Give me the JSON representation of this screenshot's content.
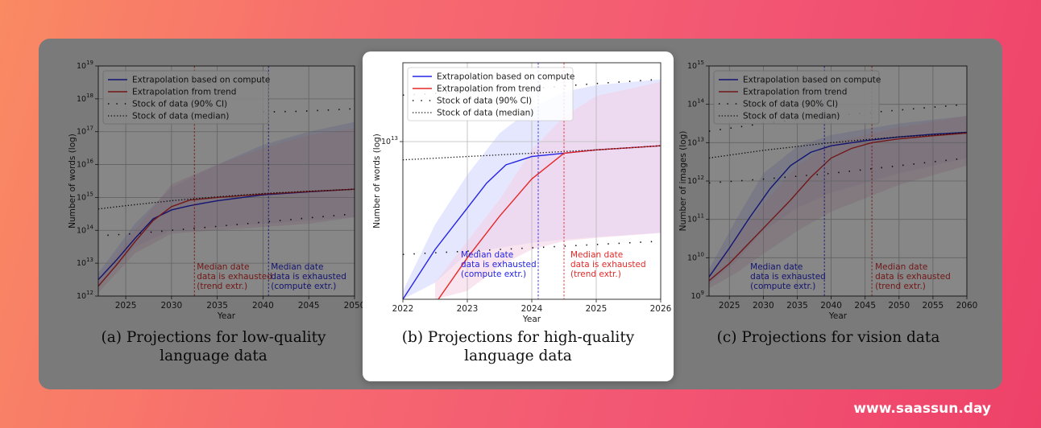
{
  "watermark": "www.saassun.day",
  "colors": {
    "compute": "#2424e6",
    "trend": "#e62828",
    "band_compute": "#cfd3ff",
    "band_trend": "#f4cfe3"
  },
  "chart_data": [
    {
      "type": "line",
      "caption": "(a) Projections for low-quality\nlanguage data",
      "xlabel": "Year",
      "ylabel": "Number of words (log)",
      "xlim": [
        2022,
        2050
      ],
      "ylim": [
        12,
        19
      ],
      "yscale": "log",
      "xticks": [
        "2025",
        "2030",
        "2035",
        "2040",
        "2045",
        "2050"
      ],
      "yticks": [
        "10^12",
        "10^13",
        "10^14",
        "10^15",
        "10^16",
        "10^17",
        "10^18",
        "10^19"
      ],
      "grid": true,
      "legend_position": "top-left",
      "legend": [
        "Extrapolation based on compute",
        "Extrapolation from trend",
        "Stock of data (90% CI)",
        "Stock of data (median)"
      ],
      "series": [
        {
          "name": "Extrapolation based on compute",
          "x": [
            2022,
            2024,
            2026,
            2028,
            2030,
            2032,
            2035,
            2040,
            2045,
            2050
          ],
          "y": [
            12.5,
            13.1,
            13.75,
            14.35,
            14.62,
            14.75,
            14.9,
            15.08,
            15.17,
            15.25
          ]
        },
        {
          "name": "Extrapolation from trend",
          "x": [
            2022,
            2024,
            2026,
            2028,
            2030,
            2032,
            2035,
            2040,
            2045,
            2050
          ],
          "y": [
            12.3,
            12.95,
            13.65,
            14.3,
            14.72,
            14.92,
            15.0,
            15.1,
            15.18,
            15.25
          ]
        },
        {
          "name": "Stock of data (median)",
          "x": [
            2022,
            2025,
            2030,
            2035,
            2040,
            2045,
            2050
          ],
          "y": [
            14.65,
            14.75,
            14.9,
            15.02,
            15.12,
            15.19,
            15.25
          ]
        },
        {
          "name": "Stock of data (90% CI)",
          "x": [
            2023,
            2026,
            2030,
            2035,
            2040,
            2045,
            2050
          ],
          "y": [
            13.85,
            13.9,
            14.0,
            14.12,
            14.25,
            14.38,
            14.5
          ]
        },
        {
          "name": "Stock of data (90% CI)",
          "x": [
            2040,
            2044,
            2048,
            2050
          ],
          "y": [
            17.6,
            17.62,
            17.67,
            17.7
          ]
        }
      ],
      "bands": [
        {
          "color": "compute",
          "x": [
            2022,
            2026,
            2030,
            2035,
            2040,
            2045,
            2050
          ],
          "lo": [
            12.3,
            13.5,
            14.0,
            14.1,
            14.2,
            14.3,
            14.4
          ],
          "hi": [
            12.7,
            14.2,
            15.3,
            16.0,
            16.6,
            17.0,
            17.3
          ]
        },
        {
          "color": "trend",
          "x": [
            2022,
            2026,
            2030,
            2035,
            2040,
            2045,
            2050
          ],
          "lo": [
            12.1,
            13.3,
            13.9,
            14.0,
            14.1,
            14.2,
            14.4
          ],
          "hi": [
            12.5,
            14.0,
            15.4,
            16.0,
            16.5,
            16.9,
            17.1
          ]
        }
      ],
      "vlines": [
        {
          "x": 2032.5,
          "color": "trend",
          "label": "Median date\ndata is exhausted\n(trend extr.)"
        },
        {
          "x": 2040.6,
          "color": "compute",
          "label": "Median date\ndata is exhausted\n(compute extr.)"
        }
      ]
    },
    {
      "type": "line",
      "caption": "(b) Projections for high-quality\nlanguage data",
      "xlabel": "Year",
      "ylabel": "Number of words (log)",
      "xlim": [
        2022,
        2026
      ],
      "ylim": [
        11.1,
        13.95
      ],
      "yscale": "log",
      "xticks": [
        "2022",
        "2023",
        "2024",
        "2025",
        "2026"
      ],
      "yticks": [
        "10^13"
      ],
      "grid": true,
      "legend_position": "top-left",
      "legend": [
        "Extrapolation based on compute",
        "Extrapolation from trend",
        "Stock of data (90% CI)",
        "Stock of data (median)"
      ],
      "series": [
        {
          "name": "Extrapolation based on compute",
          "x": [
            2022,
            2022.5,
            2023,
            2023.3,
            2023.6,
            2024,
            2024.5,
            2025,
            2026
          ],
          "y": [
            11.1,
            11.7,
            12.2,
            12.5,
            12.72,
            12.82,
            12.86,
            12.9,
            12.95
          ]
        },
        {
          "name": "Extrapolation from trend",
          "x": [
            2022.55,
            2023,
            2023.5,
            2024,
            2024.5,
            2025,
            2026
          ],
          "y": [
            11.1,
            11.6,
            12.1,
            12.55,
            12.86,
            12.9,
            12.95
          ]
        },
        {
          "name": "Stock of data (median)",
          "x": [
            2022,
            2023,
            2024,
            2025,
            2026
          ],
          "y": [
            12.78,
            12.82,
            12.86,
            12.9,
            12.95
          ]
        },
        {
          "name": "Stock of data (90% CI)",
          "x": [
            2022,
            2023,
            2024,
            2025,
            2026
          ],
          "y": [
            11.64,
            11.68,
            11.72,
            11.76,
            11.8
          ]
        },
        {
          "name": "Stock of data (90% CI)",
          "x": [
            2022,
            2023,
            2024,
            2025,
            2026
          ],
          "y": [
            13.56,
            13.6,
            13.64,
            13.7,
            13.75
          ]
        }
      ],
      "bands": [
        {
          "color": "compute",
          "x": [
            2022,
            2022.5,
            2023,
            2023.5,
            2024,
            2024.5,
            2025,
            2026
          ],
          "lo": [
            11.1,
            11.3,
            11.65,
            11.72,
            11.78,
            11.82,
            11.85,
            11.9
          ],
          "hi": [
            11.2,
            12.0,
            12.6,
            13.1,
            13.4,
            13.6,
            13.68,
            13.75
          ]
        },
        {
          "color": "trend",
          "x": [
            2022.5,
            2023,
            2023.5,
            2024,
            2024.5,
            2025,
            2026
          ],
          "lo": [
            11.1,
            11.2,
            11.5,
            11.7,
            11.8,
            11.84,
            11.9
          ],
          "hi": [
            11.3,
            11.8,
            12.3,
            12.9,
            13.3,
            13.55,
            13.72
          ]
        }
      ],
      "vlines": [
        {
          "x": 2024.1,
          "color": "compute",
          "label": "Median date\ndata is exhausted\n(compute extr.)"
        },
        {
          "x": 2024.5,
          "color": "trend",
          "label": "Median date\ndata is exhausted\n(trend extr.)"
        }
      ]
    },
    {
      "type": "line",
      "caption": "(c) Projections for vision data",
      "xlabel": "Year",
      "ylabel": "Number of images (log)",
      "xlim": [
        2022,
        2060
      ],
      "ylim": [
        9,
        15
      ],
      "yscale": "log",
      "xticks": [
        "2025",
        "2030",
        "2035",
        "2040",
        "2045",
        "2050",
        "2055",
        "2060"
      ],
      "yticks": [
        "10^9",
        "10^10",
        "10^11",
        "10^12",
        "10^13",
        "10^14",
        "10^15"
      ],
      "grid": true,
      "legend_position": "top-left",
      "legend": [
        "Extrapolation based on compute",
        "Extrapolation from trend",
        "Stock of data (90% CI)",
        "Stock of data (median)"
      ],
      "series": [
        {
          "name": "Extrapolation based on compute",
          "x": [
            2022,
            2025,
            2028,
            2031,
            2034,
            2037,
            2040,
            2045,
            2050,
            2055,
            2060
          ],
          "y": [
            9.5,
            10.25,
            11.05,
            11.8,
            12.4,
            12.75,
            12.92,
            13.05,
            13.15,
            13.22,
            13.27
          ]
        },
        {
          "name": "Extrapolation from trend",
          "x": [
            2022,
            2025,
            2028,
            2031,
            2034,
            2037,
            2040,
            2043,
            2046,
            2050,
            2055,
            2060
          ],
          "y": [
            9.4,
            9.85,
            10.4,
            10.95,
            11.5,
            12.1,
            12.6,
            12.85,
            13.0,
            13.1,
            13.18,
            13.25
          ]
        },
        {
          "name": "Stock of data (median)",
          "x": [
            2022,
            2030,
            2035,
            2040,
            2045,
            2050,
            2055,
            2060
          ],
          "y": [
            12.6,
            12.8,
            12.9,
            13.0,
            13.08,
            13.15,
            13.2,
            13.27
          ]
        },
        {
          "name": "Stock of data (90% CI)",
          "x": [
            2022,
            2030,
            2040,
            2050,
            2060
          ],
          "y": [
            11.95,
            12.05,
            12.2,
            12.4,
            12.6
          ]
        },
        {
          "name": "Stock of data (90% CI)",
          "x": [
            2022,
            2030,
            2040,
            2050,
            2060
          ],
          "y": [
            13.3,
            13.5,
            13.7,
            13.85,
            14.0
          ]
        }
      ],
      "bands": [
        {
          "color": "compute",
          "x": [
            2022,
            2026,
            2030,
            2035,
            2040,
            2050,
            2060
          ],
          "lo": [
            9.3,
            9.9,
            10.7,
            11.3,
            11.7,
            12.2,
            12.6
          ],
          "hi": [
            9.7,
            11.0,
            12.2,
            12.9,
            13.2,
            13.5,
            13.7
          ]
        },
        {
          "color": "trend",
          "x": [
            2022,
            2026,
            2030,
            2035,
            2040,
            2050,
            2060
          ],
          "lo": [
            9.2,
            9.6,
            10.1,
            10.7,
            11.2,
            11.9,
            12.4
          ],
          "hi": [
            9.6,
            10.5,
            11.4,
            12.4,
            13.0,
            13.4,
            13.7
          ]
        }
      ],
      "vlines": [
        {
          "x": 2039,
          "color": "compute",
          "label": "Median date\ndata is exhausted\n(compute extr.)"
        },
        {
          "x": 2046,
          "color": "trend",
          "label": "Median date\ndata is exhausted\n(trend extr.)"
        }
      ]
    }
  ]
}
